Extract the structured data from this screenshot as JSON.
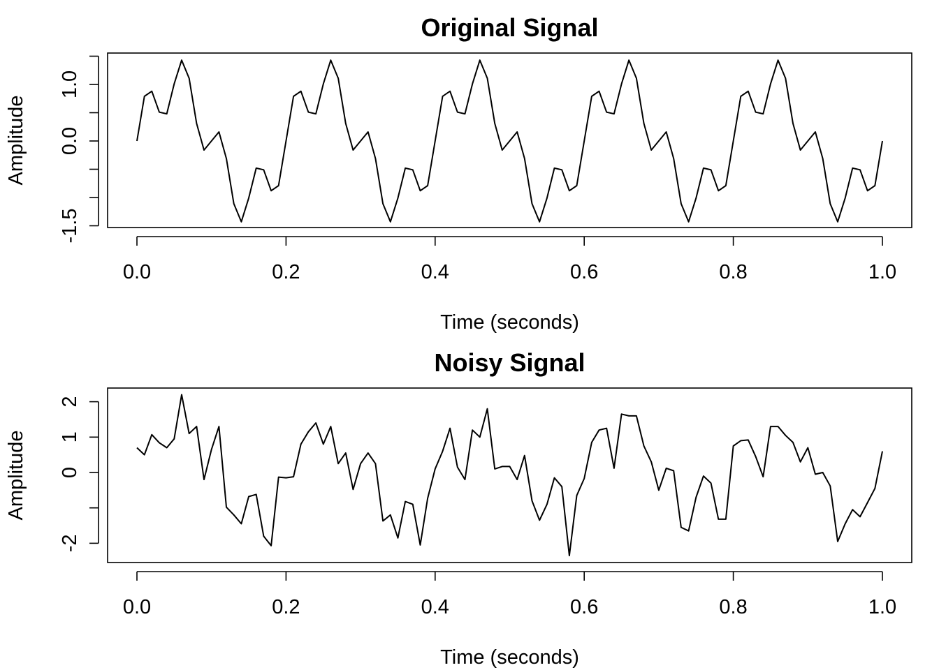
{
  "chart_data": [
    {
      "type": "line",
      "title": "Original Signal",
      "xlabel": "Time (seconds)",
      "ylabel": "Amplitude",
      "xlim": [
        0,
        1
      ],
      "ylim": [
        -1.5,
        1.5
      ],
      "x_ticks": [
        0,
        0.2,
        0.4,
        0.6,
        0.8,
        1.0
      ],
      "x_tick_labels": [
        "0.0",
        "0.2",
        "0.4",
        "0.6",
        "0.8",
        "1.0"
      ],
      "y_ticks": [
        -1.5,
        -1.0,
        -0.5,
        0.0,
        0.5,
        1.0,
        1.5
      ],
      "y_tick_labels": [
        "-1.5",
        "",
        "",
        "0.0",
        "",
        "1.0",
        ""
      ],
      "grid": false,
      "series": [
        {
          "x": [
            0.0,
            0.01,
            0.02,
            0.03,
            0.04,
            0.05,
            0.06,
            0.07,
            0.08,
            0.09,
            0.1,
            0.11,
            0.12,
            0.13,
            0.14,
            0.15,
            0.16,
            0.17,
            0.18,
            0.19,
            0.2,
            0.21,
            0.22,
            0.23,
            0.24,
            0.25,
            0.26,
            0.27,
            0.28,
            0.29,
            0.3,
            0.31,
            0.32,
            0.33,
            0.34,
            0.35,
            0.36,
            0.37,
            0.38,
            0.39,
            0.4,
            0.41,
            0.42,
            0.43,
            0.44,
            0.45,
            0.46,
            0.47,
            0.48,
            0.49,
            0.5,
            0.51,
            0.52,
            0.53,
            0.54,
            0.55,
            0.56,
            0.57,
            0.58,
            0.59,
            0.6,
            0.61,
            0.62,
            0.63,
            0.64,
            0.65,
            0.66,
            0.67,
            0.68,
            0.69,
            0.7,
            0.71,
            0.72,
            0.73,
            0.74,
            0.75,
            0.76,
            0.77,
            0.78,
            0.79,
            0.8,
            0.81,
            0.82,
            0.83,
            0.84,
            0.85,
            0.86,
            0.87,
            0.88,
            0.89,
            0.9,
            0.91,
            0.92,
            0.93,
            0.94,
            0.95,
            0.96,
            0.97,
            0.98,
            0.99,
            1.0
          ],
          "y": [
            0.0,
            0.79,
            0.88,
            0.51,
            0.48,
            1.01,
            1.43,
            1.11,
            0.31,
            -0.16,
            0.0,
            0.16,
            -0.31,
            -1.11,
            -1.43,
            -1.01,
            -0.48,
            -0.51,
            -0.88,
            -0.79,
            0.0,
            0.79,
            0.88,
            0.51,
            0.48,
            1.01,
            1.43,
            1.11,
            0.31,
            -0.16,
            0.0,
            0.16,
            -0.31,
            -1.11,
            -1.43,
            -1.01,
            -0.48,
            -0.51,
            -0.88,
            -0.79,
            0.0,
            0.79,
            0.88,
            0.51,
            0.48,
            1.01,
            1.43,
            1.11,
            0.31,
            -0.16,
            0.0,
            0.16,
            -0.31,
            -1.11,
            -1.43,
            -1.01,
            -0.48,
            -0.51,
            -0.88,
            -0.79,
            0.0,
            0.79,
            0.88,
            0.51,
            0.48,
            1.01,
            1.43,
            1.11,
            0.31,
            -0.16,
            0.0,
            0.16,
            -0.31,
            -1.11,
            -1.43,
            -1.01,
            -0.48,
            -0.51,
            -0.88,
            -0.79,
            0.0,
            0.79,
            0.88,
            0.51,
            0.48,
            1.01,
            1.43,
            1.11,
            0.31,
            -0.16,
            0.0,
            0.16,
            -0.31,
            -1.11,
            -1.43,
            -1.01,
            -0.48,
            -0.51,
            -0.88,
            -0.79,
            0.0
          ]
        }
      ]
    },
    {
      "type": "line",
      "title": "Noisy Signal",
      "xlabel": "Time (seconds)",
      "ylabel": "Amplitude",
      "xlim": [
        0,
        1
      ],
      "ylim": [
        -2.4,
        2.4
      ],
      "x_ticks": [
        0,
        0.2,
        0.4,
        0.6,
        0.8,
        1.0
      ],
      "x_tick_labels": [
        "0.0",
        "0.2",
        "0.4",
        "0.6",
        "0.8",
        "1.0"
      ],
      "y_ticks": [
        -2,
        -1,
        0,
        1,
        2
      ],
      "y_tick_labels": [
        "-2",
        "",
        "0",
        "1",
        "2"
      ],
      "grid": false,
      "series": [
        {
          "x": [
            0.0,
            0.01,
            0.02,
            0.03,
            0.04,
            0.05,
            0.06,
            0.07,
            0.08,
            0.09,
            0.1,
            0.11,
            0.12,
            0.13,
            0.14,
            0.15,
            0.16,
            0.17,
            0.18,
            0.19,
            0.2,
            0.21,
            0.22,
            0.23,
            0.24,
            0.25,
            0.26,
            0.27,
            0.28,
            0.29,
            0.3,
            0.31,
            0.32,
            0.33,
            0.34,
            0.35,
            0.36,
            0.37,
            0.38,
            0.39,
            0.4,
            0.41,
            0.42,
            0.43,
            0.44,
            0.45,
            0.46,
            0.47,
            0.48,
            0.49,
            0.5,
            0.51,
            0.52,
            0.53,
            0.54,
            0.55,
            0.56,
            0.57,
            0.58,
            0.59,
            0.6,
            0.61,
            0.62,
            0.63,
            0.64,
            0.65,
            0.66,
            0.67,
            0.68,
            0.69,
            0.7,
            0.71,
            0.72,
            0.73,
            0.74,
            0.75,
            0.76,
            0.77,
            0.78,
            0.79,
            0.8,
            0.81,
            0.82,
            0.83,
            0.84,
            0.85,
            0.86,
            0.87,
            0.88,
            0.89,
            0.9,
            0.91,
            0.92,
            0.93,
            0.94,
            0.95,
            0.96,
            0.97,
            0.98,
            0.99,
            1.0
          ],
          "y": [
            0.7,
            0.5,
            1.07,
            0.84,
            0.7,
            0.95,
            2.2,
            1.1,
            1.3,
            -0.2,
            0.65,
            1.3,
            -0.98,
            -1.2,
            -1.45,
            -0.68,
            -0.62,
            -1.8,
            -2.07,
            -0.13,
            -0.15,
            -0.12,
            0.8,
            1.15,
            1.4,
            0.8,
            1.3,
            0.25,
            0.55,
            -0.48,
            0.25,
            0.55,
            0.25,
            -1.37,
            -1.2,
            -1.85,
            -0.82,
            -0.9,
            -2.05,
            -0.73,
            0.1,
            0.6,
            1.25,
            0.15,
            -0.2,
            1.2,
            1.0,
            1.8,
            0.1,
            0.17,
            0.17,
            -0.2,
            0.48,
            -0.8,
            -1.35,
            -0.9,
            -0.15,
            -0.4,
            -2.35,
            -0.65,
            -0.17,
            0.85,
            1.2,
            1.25,
            0.12,
            1.65,
            1.6,
            1.6,
            0.75,
            0.3,
            -0.5,
            0.12,
            0.05,
            -1.55,
            -1.65,
            -0.7,
            -0.1,
            -0.3,
            -1.32,
            -1.32,
            0.75,
            0.9,
            0.92,
            0.45,
            -0.12,
            1.3,
            1.3,
            1.05,
            0.85,
            0.3,
            0.7,
            -0.05,
            0.0,
            -0.38,
            -1.95,
            -1.45,
            -1.05,
            -1.25,
            -0.85,
            -0.45,
            0.6
          ]
        }
      ]
    }
  ]
}
